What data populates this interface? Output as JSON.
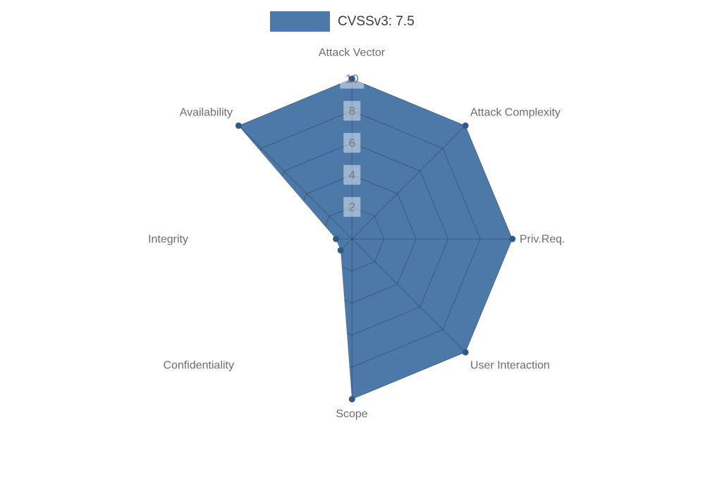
{
  "chart_data": {
    "type": "radar",
    "title": "",
    "legend": {
      "label": "CVSSv3: 7.5",
      "position": "top-center"
    },
    "categories": [
      "Attack Vector",
      "Attack Complexity",
      "Priv.Req.",
      "User Interaction",
      "Scope",
      "Confidentiality",
      "Integrity",
      "Availability"
    ],
    "series": [
      {
        "name": "CVSSv3: 7.5",
        "values": [
          10,
          10,
          10,
          10,
          10,
          1,
          1,
          10
        ],
        "color": "#4d79a8",
        "marker_color": "#2f5a87"
      }
    ],
    "scale": {
      "min": 0,
      "max": 10,
      "ticks": [
        2,
        4,
        6,
        8,
        10
      ]
    },
    "layout_hints": {
      "grid": "web rings and radial axes visible only inside filled polygon",
      "grid_color": "rgba(0,0,0,0.25)",
      "tick_plaque_color": "rgba(255,255,255,0.45)",
      "axis_label_color": "#6d6d6d",
      "background": "#ffffff"
    }
  }
}
